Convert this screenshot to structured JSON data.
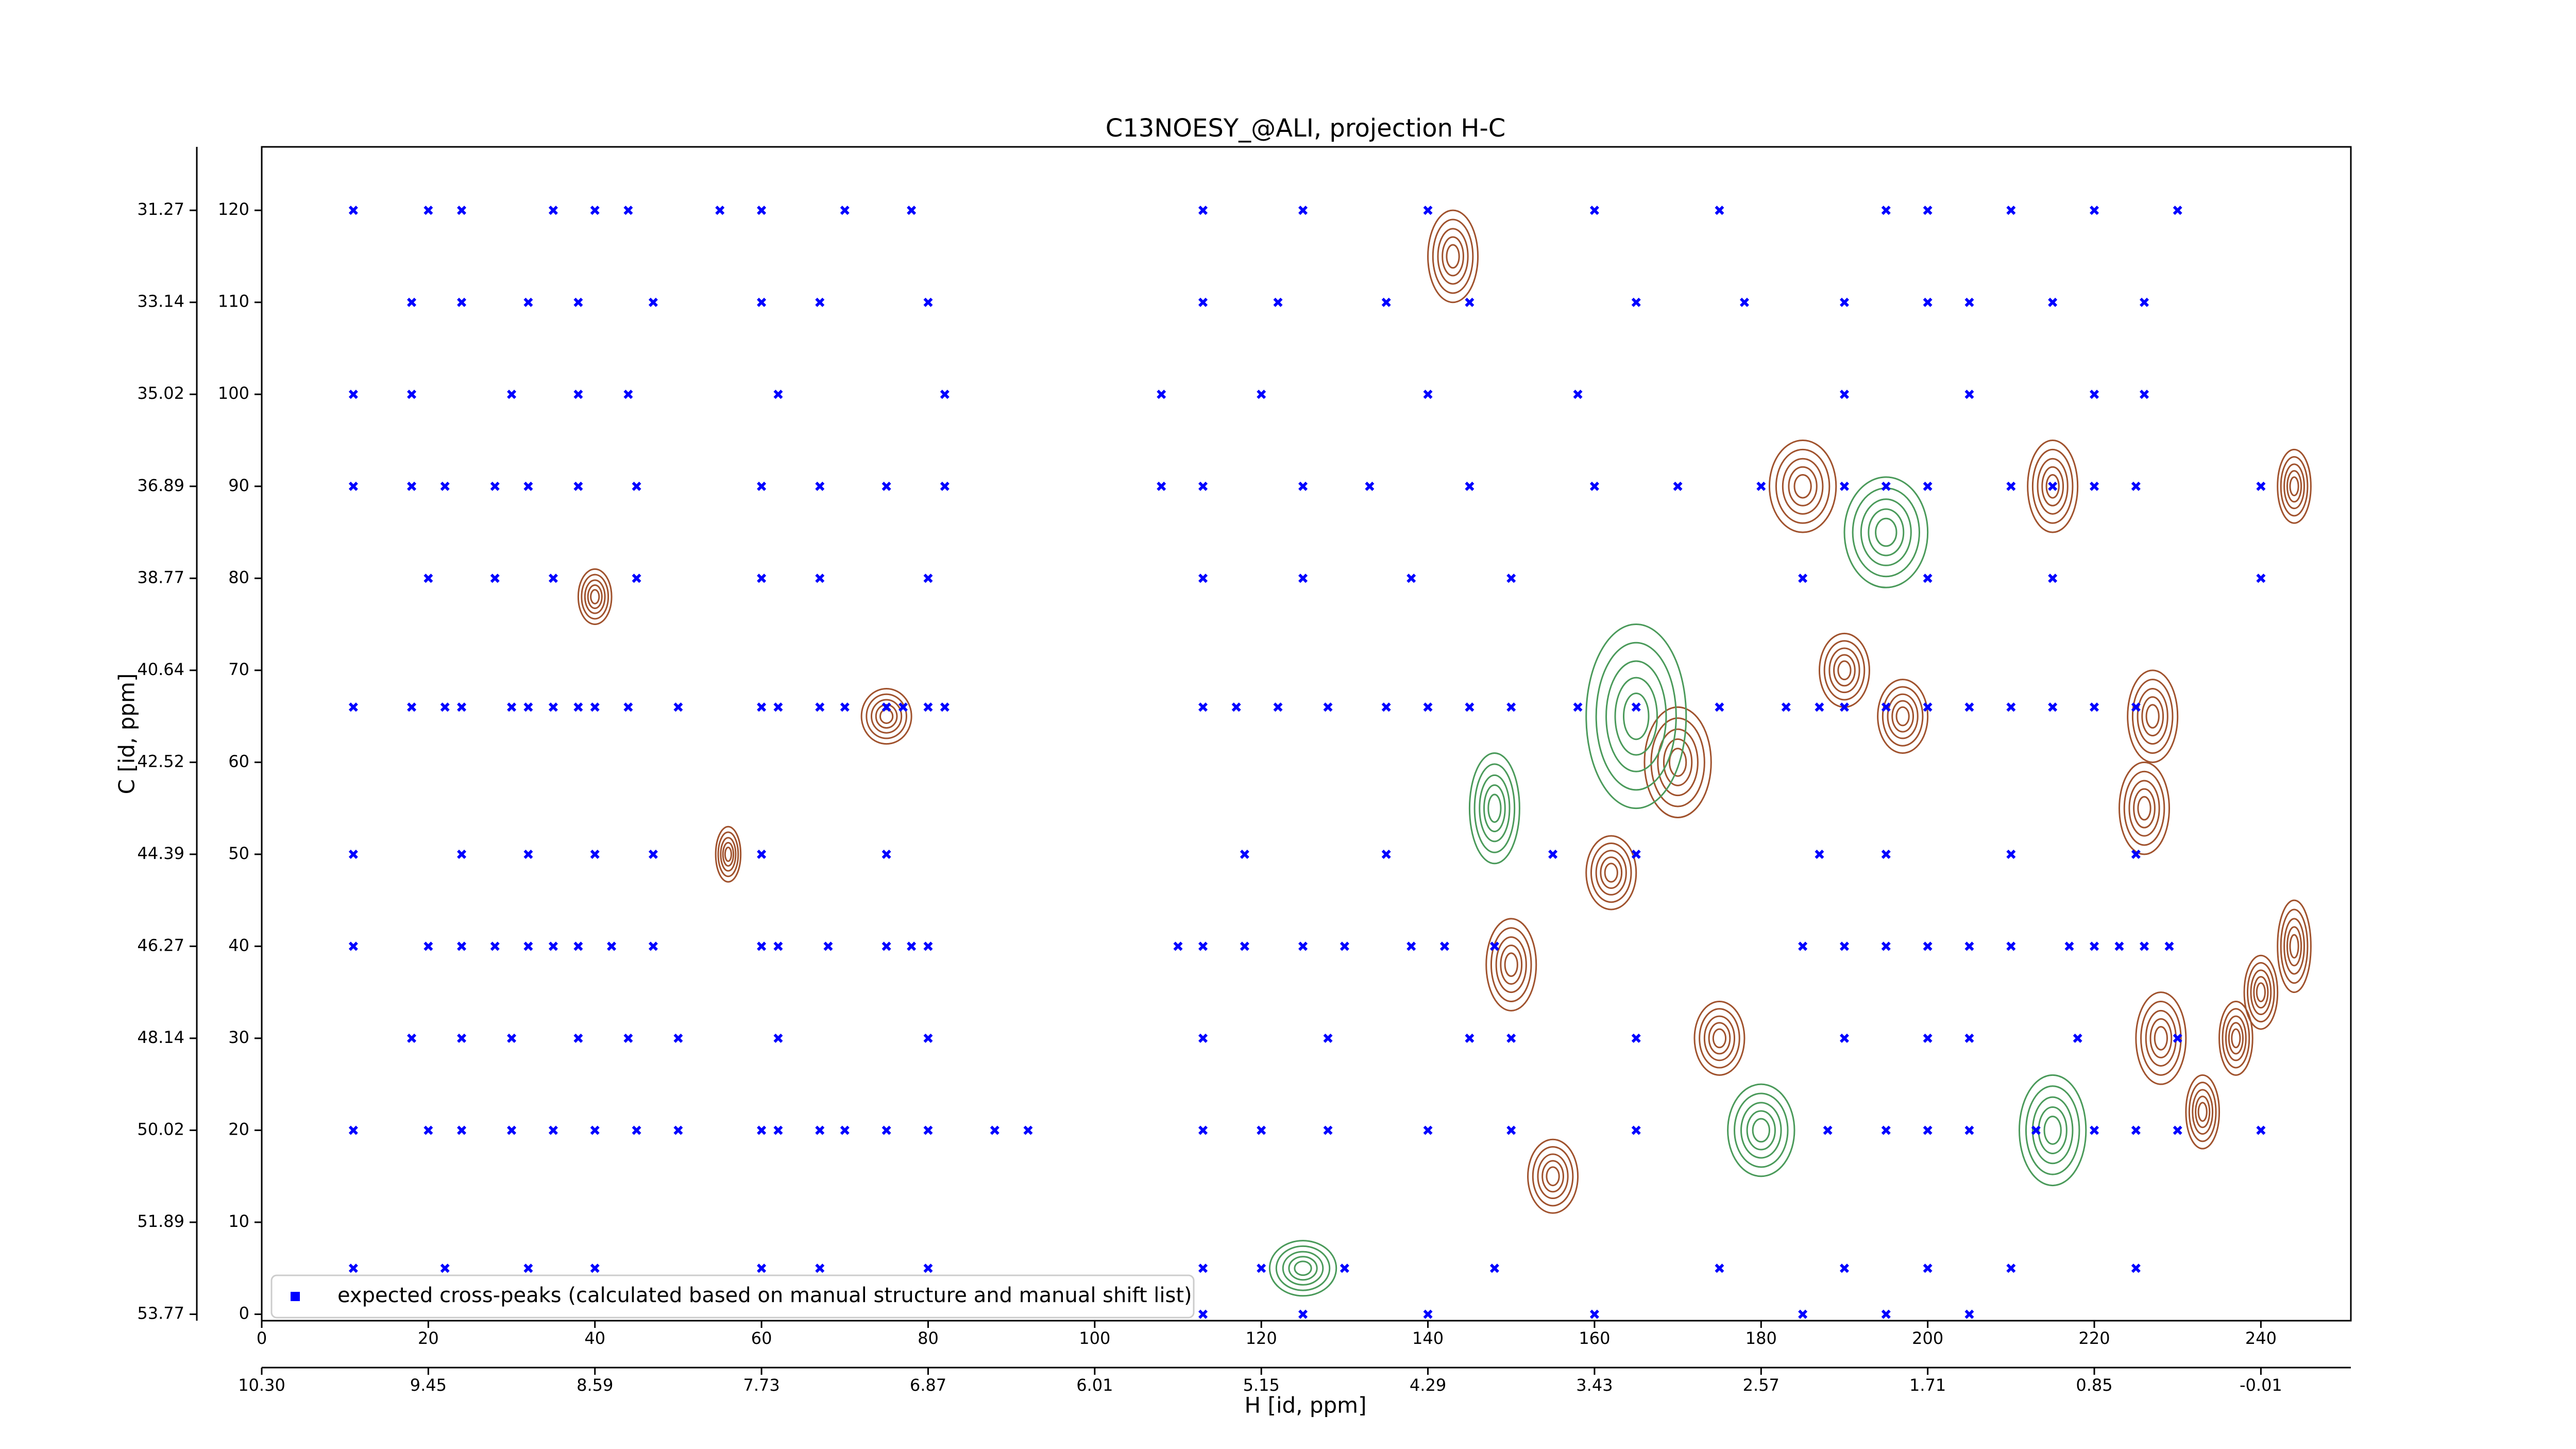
{
  "chart_data": {
    "type": "scatter",
    "title": "C13NOESY_@ALI, projection H-C",
    "xlabel": "H [id, ppm]",
    "ylabel": "C [id, ppm]",
    "xlim": [
      0,
      250.8
    ],
    "ylim": [
      -0.7,
      126.9
    ],
    "xticks": [
      0,
      20,
      40,
      60,
      80,
      100,
      120,
      140,
      160,
      180,
      200,
      220,
      240
    ],
    "yticks": [
      0,
      10,
      20,
      30,
      40,
      50,
      60,
      70,
      80,
      90,
      100,
      110,
      120
    ],
    "x2ticks": [
      {
        "value": 0,
        "label": "10.30"
      },
      {
        "value": 20,
        "label": "9.45"
      },
      {
        "value": 40,
        "label": "8.59"
      },
      {
        "value": 60,
        "label": "7.73"
      },
      {
        "value": 80,
        "label": "6.87"
      },
      {
        "value": 100,
        "label": "6.01"
      },
      {
        "value": 120,
        "label": "5.15"
      },
      {
        "value": 140,
        "label": "4.29"
      },
      {
        "value": 160,
        "label": "3.43"
      },
      {
        "value": 180,
        "label": "2.57"
      },
      {
        "value": 200,
        "label": "1.71"
      },
      {
        "value": 220,
        "label": "0.85"
      },
      {
        "value": 240,
        "label": "-0.01"
      }
    ],
    "y2ticks": [
      {
        "value": 120,
        "label": "31.27"
      },
      {
        "value": 110,
        "label": "33.14"
      },
      {
        "value": 100,
        "label": "35.02"
      },
      {
        "value": 90,
        "label": "36.89"
      },
      {
        "value": 80,
        "label": "38.77"
      },
      {
        "value": 70,
        "label": "40.64"
      },
      {
        "value": 60,
        "label": "42.52"
      },
      {
        "value": 50,
        "label": "44.39"
      },
      {
        "value": 40,
        "label": "46.27"
      },
      {
        "value": 30,
        "label": "48.14"
      },
      {
        "value": 20,
        "label": "50.02"
      },
      {
        "value": 10,
        "label": "51.89"
      },
      {
        "value": 0,
        "label": "53.77"
      }
    ],
    "legend": "lower left",
    "series": [
      {
        "name": "expected cross-peaks (calculated based on manual structure and manual shift list)",
        "color": "#0000ff",
        "x": [
          11,
          18,
          22,
          24,
          30,
          32,
          35,
          38,
          40,
          44,
          50,
          60,
          62,
          67,
          70,
          75,
          77,
          80,
          82,
          113,
          117,
          122,
          128,
          135,
          140,
          145,
          150,
          158,
          165,
          175,
          183,
          187,
          190,
          195,
          200,
          205,
          210,
          215,
          220,
          225,
          11,
          20,
          24,
          28,
          32,
          35,
          38,
          42,
          47,
          60,
          62,
          68,
          75,
          78,
          80,
          110,
          113,
          118,
          125,
          130,
          138,
          142,
          148,
          185,
          190,
          195,
          200,
          205,
          210,
          217,
          220,
          223,
          226,
          229,
          11,
          20,
          24,
          30,
          35,
          40,
          45,
          50,
          60,
          62,
          67,
          70,
          75,
          80,
          88,
          92,
          113,
          120,
          128,
          140,
          150,
          165,
          188,
          195,
          200,
          205,
          213,
          220,
          225,
          230,
          240,
          11,
          18,
          22,
          28,
          32,
          38,
          45,
          60,
          67,
          75,
          82,
          108,
          113,
          125,
          133,
          145,
          160,
          170,
          180,
          190,
          195,
          200,
          210,
          215,
          220,
          225,
          240,
          18,
          24,
          32,
          38,
          47,
          60,
          67,
          80,
          113,
          122,
          135,
          145,
          165,
          178,
          190,
          200,
          205,
          215,
          226,
          11,
          20,
          24,
          35,
          40,
          44,
          55,
          60,
          70,
          78,
          113,
          125,
          140,
          160,
          175,
          195,
          200,
          210,
          220,
          230,
          11,
          22,
          32,
          40,
          60,
          67,
          80,
          113,
          120,
          130,
          148,
          175,
          190,
          200,
          210,
          225,
          18,
          24,
          30,
          38,
          44,
          50,
          62,
          80,
          113,
          128,
          145,
          150,
          165,
          190,
          200,
          205,
          218,
          230,
          11,
          24,
          32,
          40,
          47,
          60,
          75,
          118,
          135,
          155,
          165,
          187,
          195,
          210,
          225,
          20,
          28,
          35,
          45,
          60,
          67,
          80,
          113,
          125,
          138,
          150,
          185,
          200,
          215,
          240,
          11,
          18,
          30,
          38,
          44,
          62,
          82,
          108,
          120,
          140,
          158,
          190,
          205,
          220,
          226,
          113,
          125,
          140,
          160,
          185,
          195,
          205
        ],
        "y": [
          66,
          66,
          66,
          66,
          66,
          66,
          66,
          66,
          66,
          66,
          66,
          66,
          66,
          66,
          66,
          66,
          66,
          66,
          66,
          66,
          66,
          66,
          66,
          66,
          66,
          66,
          66,
          66,
          66,
          66,
          66,
          66,
          66,
          66,
          66,
          66,
          66,
          66,
          66,
          66,
          40,
          40,
          40,
          40,
          40,
          40,
          40,
          40,
          40,
          40,
          40,
          40,
          40,
          40,
          40,
          40,
          40,
          40,
          40,
          40,
          40,
          40,
          40,
          40,
          40,
          40,
          40,
          40,
          40,
          40,
          40,
          40,
          40,
          40,
          20,
          20,
          20,
          20,
          20,
          20,
          20,
          20,
          20,
          20,
          20,
          20,
          20,
          20,
          20,
          20,
          20,
          20,
          20,
          20,
          20,
          20,
          20,
          20,
          20,
          20,
          20,
          20,
          20,
          20,
          20,
          90,
          90,
          90,
          90,
          90,
          90,
          90,
          90,
          90,
          90,
          90,
          90,
          90,
          90,
          90,
          90,
          90,
          90,
          90,
          90,
          90,
          90,
          90,
          90,
          90,
          90,
          90,
          110,
          110,
          110,
          110,
          110,
          110,
          110,
          110,
          110,
          110,
          110,
          110,
          110,
          110,
          110,
          110,
          110,
          110,
          110,
          120,
          120,
          120,
          120,
          120,
          120,
          120,
          120,
          120,
          120,
          120,
          120,
          120,
          120,
          120,
          120,
          120,
          120,
          120,
          120,
          5,
          5,
          5,
          5,
          5,
          5,
          5,
          5,
          5,
          5,
          5,
          5,
          5,
          5,
          5,
          5,
          30,
          30,
          30,
          30,
          30,
          30,
          30,
          30,
          30,
          30,
          30,
          30,
          30,
          30,
          30,
          30,
          30,
          30,
          50,
          50,
          50,
          50,
          50,
          50,
          50,
          50,
          50,
          50,
          50,
          50,
          50,
          50,
          50,
          80,
          80,
          80,
          80,
          80,
          80,
          80,
          80,
          80,
          80,
          80,
          80,
          80,
          80,
          80,
          100,
          100,
          100,
          100,
          100,
          100,
          100,
          100,
          100,
          100,
          100,
          100,
          100,
          100,
          100,
          0,
          0,
          0,
          0,
          0,
          0,
          0
        ]
      }
    ],
    "contours": [
      {
        "color": "#a0522d",
        "x": [
          40,
          56,
          75,
          150,
          170,
          175,
          185,
          190,
          197,
          215,
          227,
          226,
          228,
          233,
          237,
          240,
          244,
          244,
          162,
          155,
          143
        ],
        "y": [
          78,
          50,
          65,
          38,
          60,
          30,
          90,
          70,
          65,
          90,
          65,
          55,
          30,
          22,
          30,
          35,
          90,
          40,
          48,
          15,
          115
        ],
        "rx": [
          2,
          1.5,
          3,
          3,
          4,
          3,
          4,
          3,
          3,
          3,
          3,
          3,
          3,
          2,
          2,
          2,
          2,
          2,
          3,
          3,
          3
        ],
        "ry": [
          3,
          3,
          3,
          5,
          6,
          4,
          5,
          4,
          4,
          5,
          5,
          5,
          5,
          4,
          4,
          4,
          4,
          5,
          4,
          4,
          5
        ]
      },
      {
        "color": "#4a9a5a",
        "x": [
          165,
          148,
          195,
          215,
          125,
          180
        ],
        "y": [
          65,
          55,
          85,
          20,
          5,
          20
        ],
        "rx": [
          6,
          3,
          5,
          4,
          4,
          4
        ],
        "ry": [
          10,
          6,
          6,
          6,
          3,
          5
        ]
      }
    ]
  }
}
